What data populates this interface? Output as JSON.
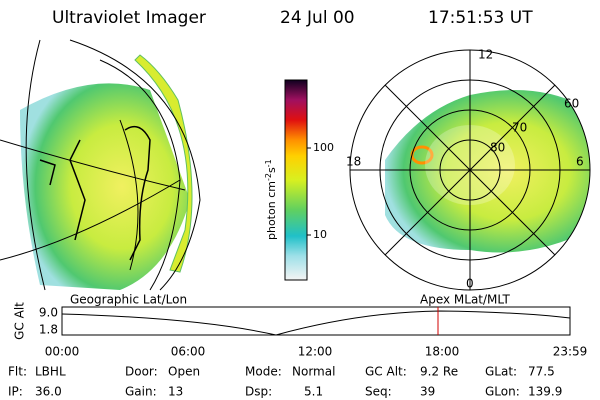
{
  "header": {
    "title": "Ultraviolet Imager",
    "date": "24 Jul 00",
    "time": "17:51:53 UT"
  },
  "colorbar": {
    "label": {
      "base": "photon cm",
      "exp1": "-2",
      "unit2": "s",
      "exp2": "-1"
    },
    "ticks": [
      "100",
      "10"
    ]
  },
  "polar": {
    "mlt_labels": [
      "12",
      "18",
      "6",
      "0"
    ],
    "lat_labels": [
      "60",
      "70",
      "80"
    ]
  },
  "captions": {
    "left": "Geographic Lat/Lon",
    "right": "Apex MLat/MLT"
  },
  "altitude": {
    "axis_label": "GC Alt",
    "yticks": [
      "9.0",
      "1.8"
    ],
    "xticks": [
      "00:00",
      "06:00",
      "12:00",
      "18:00",
      "23:59"
    ]
  },
  "footer": [
    {
      "label": "Flt:",
      "value": "LBHL"
    },
    {
      "label": "Door:",
      "value": "Open"
    },
    {
      "label": "Mode:",
      "value": "Normal"
    },
    {
      "label": "GC Alt:",
      "value": "9.2 Re"
    },
    {
      "label": "GLat:",
      "value": "77.5"
    },
    {
      "label": "IP:",
      "value": "36.0"
    },
    {
      "label": "Gain:",
      "value": "13"
    },
    {
      "label": "Dsp:",
      "value": "5.1"
    },
    {
      "label": "Seq:",
      "value": "39"
    },
    {
      "label": "GLon:",
      "value": "139.9"
    }
  ]
}
